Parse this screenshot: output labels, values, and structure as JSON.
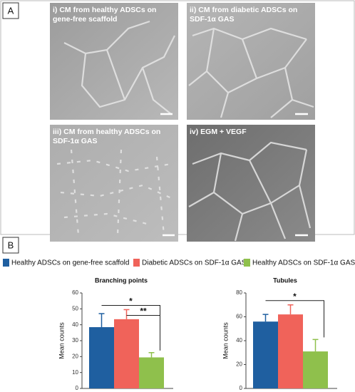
{
  "panel_a": {
    "label": "A",
    "images": [
      {
        "caption": [
          "i) CM from healthy ADSCs on",
          "gene-free scaffold"
        ]
      },
      {
        "caption": [
          "ii) CM from diabetic ADSCs on",
          "SDF-1α GAS"
        ]
      },
      {
        "caption": [
          "iii) CM from healthy ADSCs on",
          "SDF-1α GAS"
        ]
      },
      {
        "caption": [
          "iv) EGM + VEGF"
        ]
      }
    ]
  },
  "panel_b": {
    "label": "B",
    "legend": [
      {
        "name": "Healthy ADSCs on gene-free scaffold",
        "color": "#1f5fa0"
      },
      {
        "name": "Diabetic ADSCs on SDF-1α GAS",
        "color": "#f0635a"
      },
      {
        "name": "Healthy ADSCs on SDF-1α GAS",
        "color": "#8fc04c"
      }
    ]
  },
  "chart_data": [
    {
      "type": "bar",
      "title": "Branching points",
      "y_label": "Mean counts",
      "values": [
        38.5,
        43.5,
        19.5
      ],
      "errors": [
        8.5,
        6,
        3
      ],
      "ylim": [
        0,
        60
      ],
      "yticks": [
        0,
        10,
        20,
        30,
        40,
        50,
        60
      ],
      "annotations": [
        "*",
        "**"
      ]
    },
    {
      "type": "bar",
      "title": "Tubules",
      "y_label": "Mean counts",
      "values": [
        56,
        62,
        31
      ],
      "errors": [
        6,
        8,
        10
      ],
      "ylim": [
        0,
        80
      ],
      "yticks": [
        0,
        20,
        40,
        60,
        80
      ],
      "annotations": [
        "*"
      ]
    }
  ]
}
